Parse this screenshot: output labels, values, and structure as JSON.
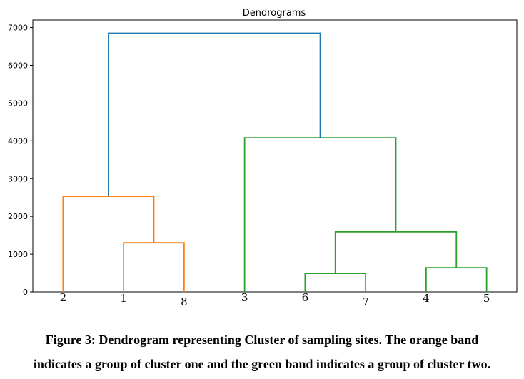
{
  "chart_data": {
    "type": "dendrogram",
    "title": "Dendrograms",
    "xlabel": "",
    "ylabel": "",
    "ylim": [
      0,
      7200
    ],
    "yticks": [
      0,
      1000,
      2000,
      3000,
      4000,
      5000,
      6000,
      7000
    ],
    "leaves": [
      "2",
      "1",
      "8",
      "3",
      "6",
      "7",
      "4",
      "5"
    ],
    "merges": [
      {
        "left": "1",
        "right": "8",
        "height": 1300,
        "color": "#ff7f0e"
      },
      {
        "left": "2",
        "right": "1+8",
        "height": 2530,
        "color": "#ff7f0e"
      },
      {
        "left": "6",
        "right": "7",
        "height": 490,
        "color": "#2ca02c"
      },
      {
        "left": "4",
        "right": "5",
        "height": 640,
        "color": "#2ca02c"
      },
      {
        "left": "6+7",
        "right": "4+5",
        "height": 1590,
        "color": "#2ca02c"
      },
      {
        "left": "3",
        "right": "6+7+4+5",
        "height": 4080,
        "color": "#2ca02c"
      },
      {
        "left": "2+1+8",
        "right": "3+6+7+4+5",
        "height": 6850,
        "color": "#1f77b4"
      }
    ]
  },
  "caption": {
    "line1": "Figure 3: Dendrogram representing Cluster of sampling sites. The orange band",
    "line2": "indicates a group of cluster one and the green band indicates a group of cluster two."
  }
}
